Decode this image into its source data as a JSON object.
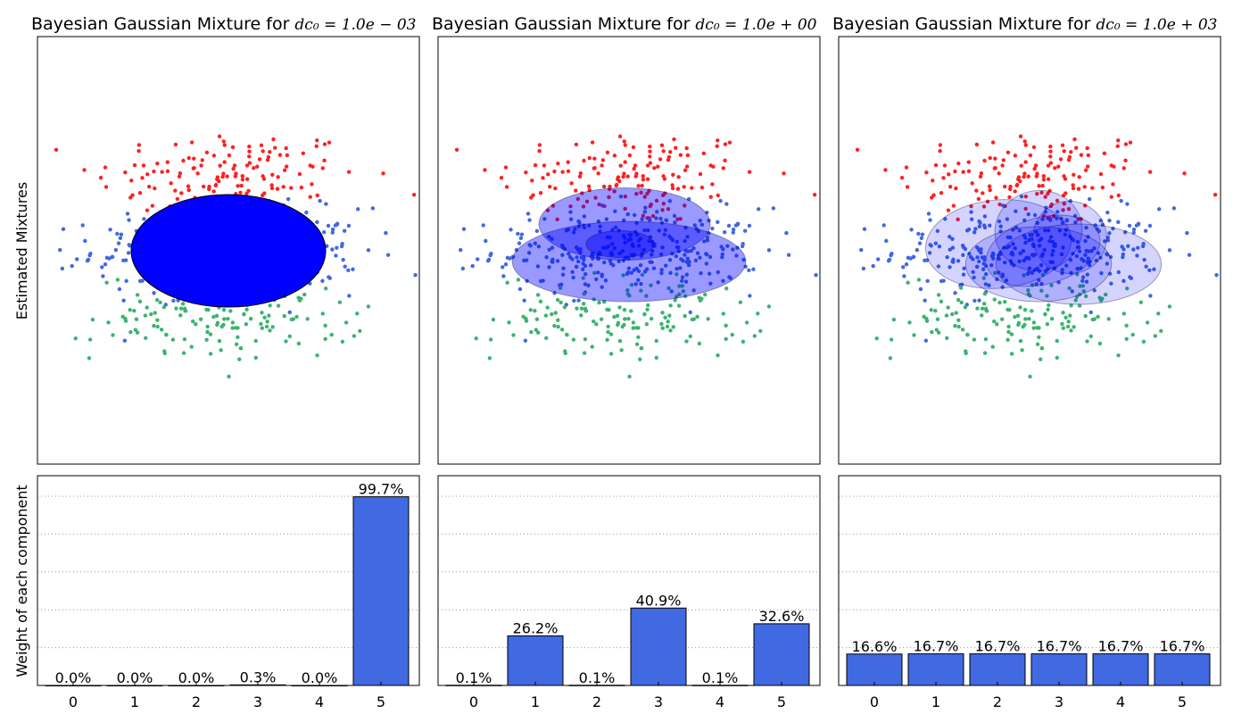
{
  "figure": {
    "ylabel_top": "Estimated Mixtures",
    "ylabel_bottom": "Weight of each component"
  },
  "colors": {
    "class_red": "#ff2020",
    "class_blue": "#4169e1",
    "class_green": "#3cb371",
    "ellipse_fill": "#0000ff",
    "bar_fill": "#4169e1",
    "grid": "#999999"
  },
  "panels": [
    {
      "title_prefix": "Bayesian Gaussian Mixture for ",
      "title_math": "dc₀ = 1.0e − 03",
      "ellipse_alpha": 1.0
    },
    {
      "title_prefix": "Bayesian Gaussian Mixture for ",
      "title_math": "dc₀ = 1.0e + 00",
      "ellipse_alpha": 0.4
    },
    {
      "title_prefix": "Bayesian Gaussian Mixture for ",
      "title_math": "dc₀ = 1.0e + 03",
      "ellipse_alpha": 0.17
    }
  ],
  "chart_data": [
    {
      "type": "scatter",
      "description_source": "panel 1 top",
      "series": [
        {
          "name": "",
          "color": "#ff2020"
        },
        {
          "name": "",
          "color": "#4169e1"
        },
        {
          "name": "",
          "color": "#3cb371"
        }
      ],
      "ellipses": [
        {
          "cx": 0.0,
          "cy": 0.0,
          "rx": 1.0,
          "ry": 0.42,
          "angle": 0
        }
      ]
    },
    {
      "type": "scatter",
      "description_source": "panel 2 top",
      "ellipses": [
        {
          "cx": -0.05,
          "cy": 0.2,
          "rx": 0.88,
          "ry": 0.27,
          "angle": 0
        },
        {
          "cx": 0.0,
          "cy": -0.08,
          "rx": 1.2,
          "ry": 0.3,
          "angle": 0
        },
        {
          "cx": -0.1,
          "cy": 0.05,
          "rx": 0.35,
          "ry": 0.1,
          "angle": 0
        }
      ]
    },
    {
      "type": "scatter",
      "description_source": "panel 3 top",
      "ellipses": [
        {
          "cx": -0.35,
          "cy": 0.05,
          "rx": 0.75,
          "ry": 0.33,
          "angle": -5
        },
        {
          "cx": 0.1,
          "cy": 0.15,
          "rx": 0.45,
          "ry": 0.3,
          "angle": -10
        },
        {
          "cx": 0.45,
          "cy": 0.1,
          "rx": 0.38,
          "ry": 0.27,
          "angle": 15
        },
        {
          "cx": 0.15,
          "cy": 0.0,
          "rx": 0.6,
          "ry": 0.25,
          "angle": -15
        },
        {
          "cx": 0.55,
          "cy": -0.1,
          "rx": 0.85,
          "ry": 0.3,
          "angle": 0
        },
        {
          "cx": 0.1,
          "cy": -0.1,
          "rx": 0.75,
          "ry": 0.28,
          "angle": 0
        }
      ]
    },
    {
      "type": "bar",
      "categories": [
        "0",
        "1",
        "2",
        "3",
        "4",
        "5"
      ],
      "values": [
        0.0,
        0.0,
        0.0,
        0.3,
        0.0,
        99.7
      ],
      "labels": [
        "0.0%",
        "0.0%",
        "0.0%",
        "0.3%",
        "0.0%",
        "99.7%"
      ],
      "ylim": [
        0,
        100
      ],
      "grid": true
    },
    {
      "type": "bar",
      "categories": [
        "0",
        "1",
        "2",
        "3",
        "4",
        "5"
      ],
      "values": [
        0.1,
        26.2,
        0.1,
        40.9,
        0.1,
        32.6
      ],
      "labels": [
        "0.1%",
        "26.2%",
        "0.1%",
        "40.9%",
        "0.1%",
        "32.6%"
      ],
      "ylim": [
        0,
        100
      ],
      "grid": true
    },
    {
      "type": "bar",
      "categories": [
        "0",
        "1",
        "2",
        "3",
        "4",
        "5"
      ],
      "values": [
        16.6,
        16.7,
        16.7,
        16.7,
        16.7,
        16.7
      ],
      "labels": [
        "16.6%",
        "16.7%",
        "16.7%",
        "16.7%",
        "16.7%",
        "16.7%"
      ],
      "ylim": [
        0,
        100
      ],
      "grid": true
    }
  ]
}
